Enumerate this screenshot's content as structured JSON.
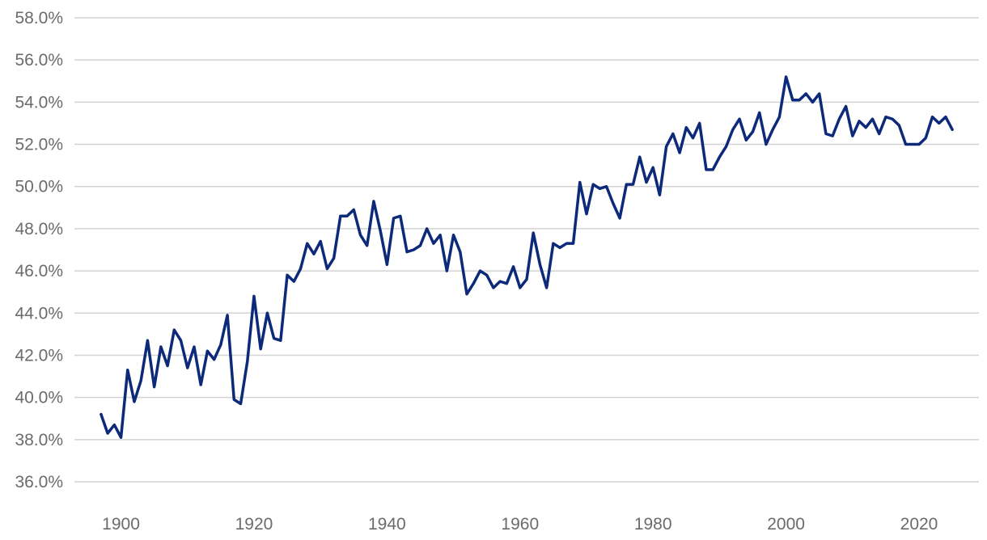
{
  "chart_data": {
    "type": "line",
    "title": "",
    "xlabel": "",
    "ylabel": "",
    "ylim": [
      36,
      58
    ],
    "xlim": [
      1893,
      2029
    ],
    "grid": "horizontal",
    "yticks": [
      36,
      38,
      40,
      42,
      44,
      46,
      48,
      50,
      52,
      54,
      56,
      58
    ],
    "ytick_labels": [
      "36.0%",
      "38.0%",
      "40.0%",
      "42.0%",
      "44.0%",
      "46.0%",
      "48.0%",
      "50.0%",
      "52.0%",
      "54.0%",
      "56.0%",
      "58.0%"
    ],
    "xticks": [
      1900,
      1920,
      1940,
      1960,
      1980,
      2000,
      2020
    ],
    "xtick_labels": [
      "1900",
      "1920",
      "1940",
      "1960",
      "1980",
      "2000",
      "2020"
    ],
    "colors": {
      "line": "#0d2a7a",
      "grid": "#d3d3d3",
      "tick_text": "#6b6b6b"
    },
    "series": [
      {
        "x": [
          1897,
          1898,
          1899,
          1900,
          1901,
          1902,
          1903,
          1904,
          1905,
          1906,
          1907,
          1908,
          1909,
          1910,
          1911,
          1912,
          1913,
          1914,
          1915,
          1916,
          1917,
          1918,
          1919,
          1920,
          1921,
          1922,
          1923,
          1924,
          1925,
          1926,
          1927,
          1928,
          1929,
          1930,
          1931,
          1932,
          1933,
          1934,
          1935,
          1936,
          1937,
          1938,
          1939,
          1940,
          1941,
          1942,
          1943,
          1944,
          1945,
          1946,
          1947,
          1948,
          1949,
          1950,
          1951,
          1952,
          1953,
          1954,
          1955,
          1956,
          1957,
          1958,
          1959,
          1960,
          1961,
          1962,
          1963,
          1964,
          1965,
          1966,
          1967,
          1968,
          1969,
          1970,
          1971,
          1972,
          1973,
          1974,
          1975,
          1976,
          1977,
          1978,
          1979,
          1980,
          1981,
          1982,
          1983,
          1984,
          1985,
          1986,
          1987,
          1988,
          1989,
          1990,
          1991,
          1992,
          1993,
          1994,
          1995,
          1996,
          1997,
          1998,
          1999,
          2000,
          2001,
          2002,
          2003,
          2004,
          2005,
          2006,
          2007,
          2008,
          2009,
          2010,
          2011,
          2012,
          2013,
          2014,
          2015,
          2016,
          2017,
          2018,
          2019,
          2020,
          2021,
          2022,
          2023,
          2024,
          2025
        ],
        "y": [
          39.2,
          38.3,
          38.7,
          38.1,
          41.3,
          39.8,
          40.8,
          42.7,
          40.5,
          42.4,
          41.5,
          43.2,
          42.7,
          41.4,
          42.4,
          40.6,
          42.2,
          41.8,
          42.5,
          43.9,
          39.9,
          39.7,
          41.7,
          44.8,
          42.3,
          44.0,
          42.8,
          42.7,
          45.8,
          45.5,
          46.1,
          47.3,
          46.8,
          47.4,
          46.1,
          46.6,
          48.6,
          48.6,
          48.9,
          47.7,
          47.2,
          49.3,
          47.9,
          46.3,
          48.5,
          48.6,
          46.9,
          47.0,
          47.2,
          48.0,
          47.3,
          47.7,
          46.0,
          47.7,
          46.9,
          44.9,
          45.4,
          46.0,
          45.8,
          45.2,
          45.5,
          45.4,
          46.2,
          45.2,
          45.6,
          47.8,
          46.3,
          45.2,
          47.3,
          47.1,
          47.3,
          47.3,
          50.2,
          48.7,
          50.1,
          49.9,
          50.0,
          49.2,
          48.5,
          50.1,
          50.1,
          51.4,
          50.2,
          50.9,
          49.6,
          51.9,
          52.5,
          51.6,
          52.8,
          52.3,
          53.0,
          50.8,
          50.8,
          51.4,
          51.9,
          52.7,
          53.2,
          52.2,
          52.6,
          53.5,
          52.0,
          52.7,
          53.3,
          55.2,
          54.1,
          54.1,
          54.4,
          54.0,
          54.4,
          52.5,
          52.4,
          53.2,
          53.8,
          52.4,
          53.1,
          52.8,
          53.2,
          52.5,
          53.3,
          53.2,
          52.9,
          52.0,
          52.0,
          52.0,
          52.3,
          53.3,
          53.0,
          53.3,
          52.7
        ]
      }
    ]
  }
}
